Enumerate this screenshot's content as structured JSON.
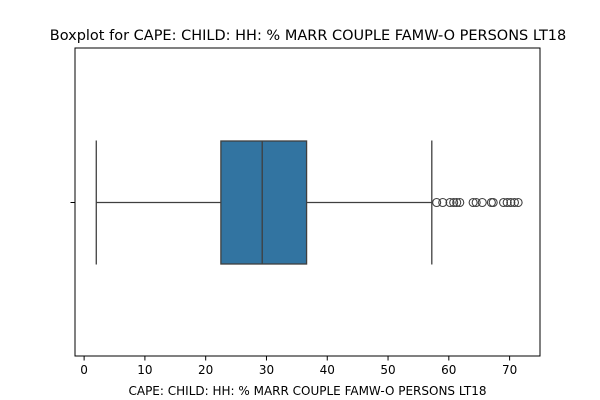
{
  "chart_data": {
    "type": "box",
    "title": "Boxplot for CAPE: CHILD: HH: % MARR COUPLE FAMW-O PERSONS LT18",
    "xlabel": "CAPE: CHILD: HH: % MARR COUPLE FAMW-O PERSONS LT18",
    "ylabel": "",
    "orientation": "horizontal",
    "xlim": [
      -1.5,
      75
    ],
    "xticks": [
      0,
      10,
      20,
      30,
      40,
      50,
      60,
      70
    ],
    "grid": false,
    "color": "#3274a1",
    "line_color": "#3f3f3f",
    "box": {
      "whisker_low": 2.0,
      "q1": 22.5,
      "median": 29.3,
      "q3": 36.6,
      "whisker_high": 57.2
    },
    "outliers": [
      58.0,
      59.0,
      60.2,
      60.8,
      61.3,
      61.8,
      64.0,
      64.5,
      65.5,
      67.0,
      67.3,
      69.0,
      69.6,
      70.2,
      70.8,
      71.4
    ]
  }
}
